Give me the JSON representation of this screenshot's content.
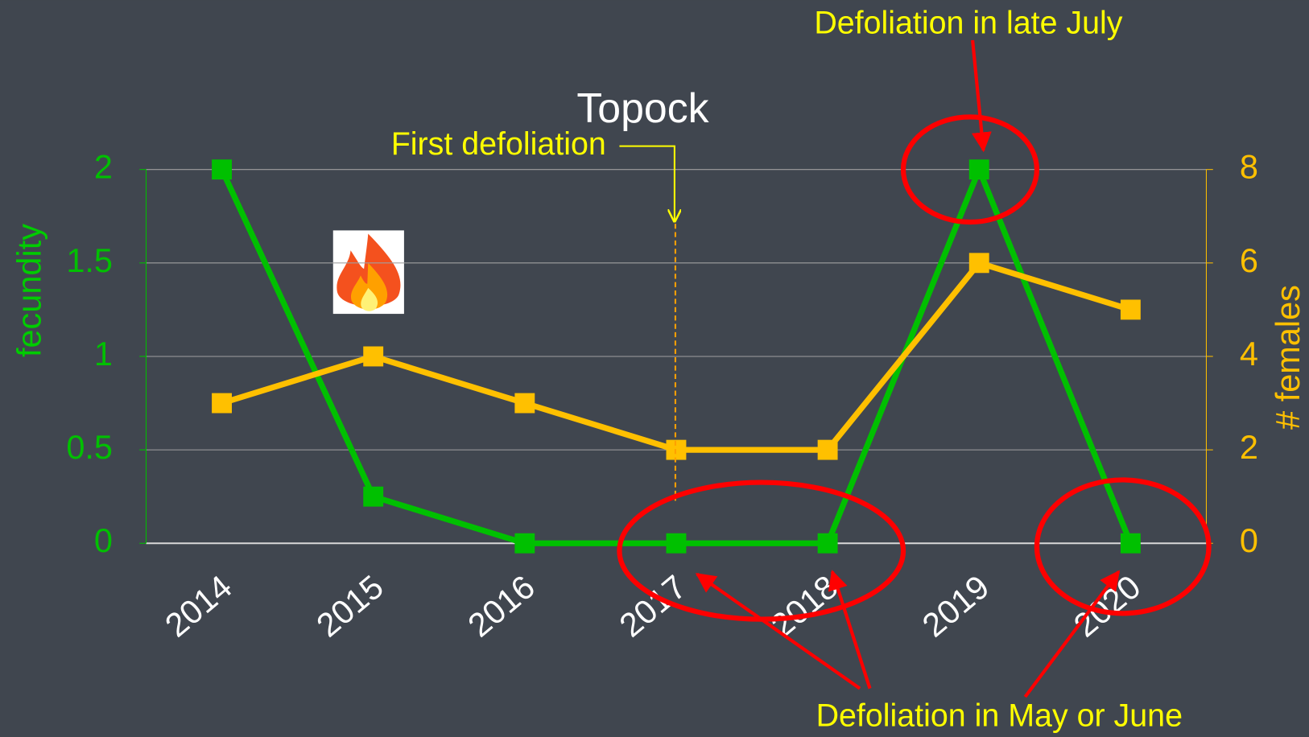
{
  "chart_data": {
    "type": "line",
    "title": "Topock",
    "categories": [
      "2014",
      "2015",
      "2016",
      "2017",
      "2018",
      "2019",
      "2020"
    ],
    "series": [
      {
        "color": "#00c000",
        "values": [
          2,
          0.25,
          0,
          0,
          0,
          2,
          0
        ]
      },
      {
        "color": "#ffc000",
        "axis": "y2",
        "values": [
          3,
          4,
          3,
          2,
          2,
          6,
          5
        ]
      }
    ],
    "y_label": "fecundity",
    "y2_label": "# females",
    "ylim": [
      0,
      2
    ],
    "yticks": [
      0,
      0.5,
      1,
      1.5,
      2
    ],
    "y2lim": [
      0,
      8
    ],
    "y2ticks": [
      0,
      2,
      4,
      6,
      8
    ],
    "grid": true,
    "annotations": [
      "First defoliation",
      "Defoliation in late July",
      "Defoliation in May or June"
    ]
  }
}
